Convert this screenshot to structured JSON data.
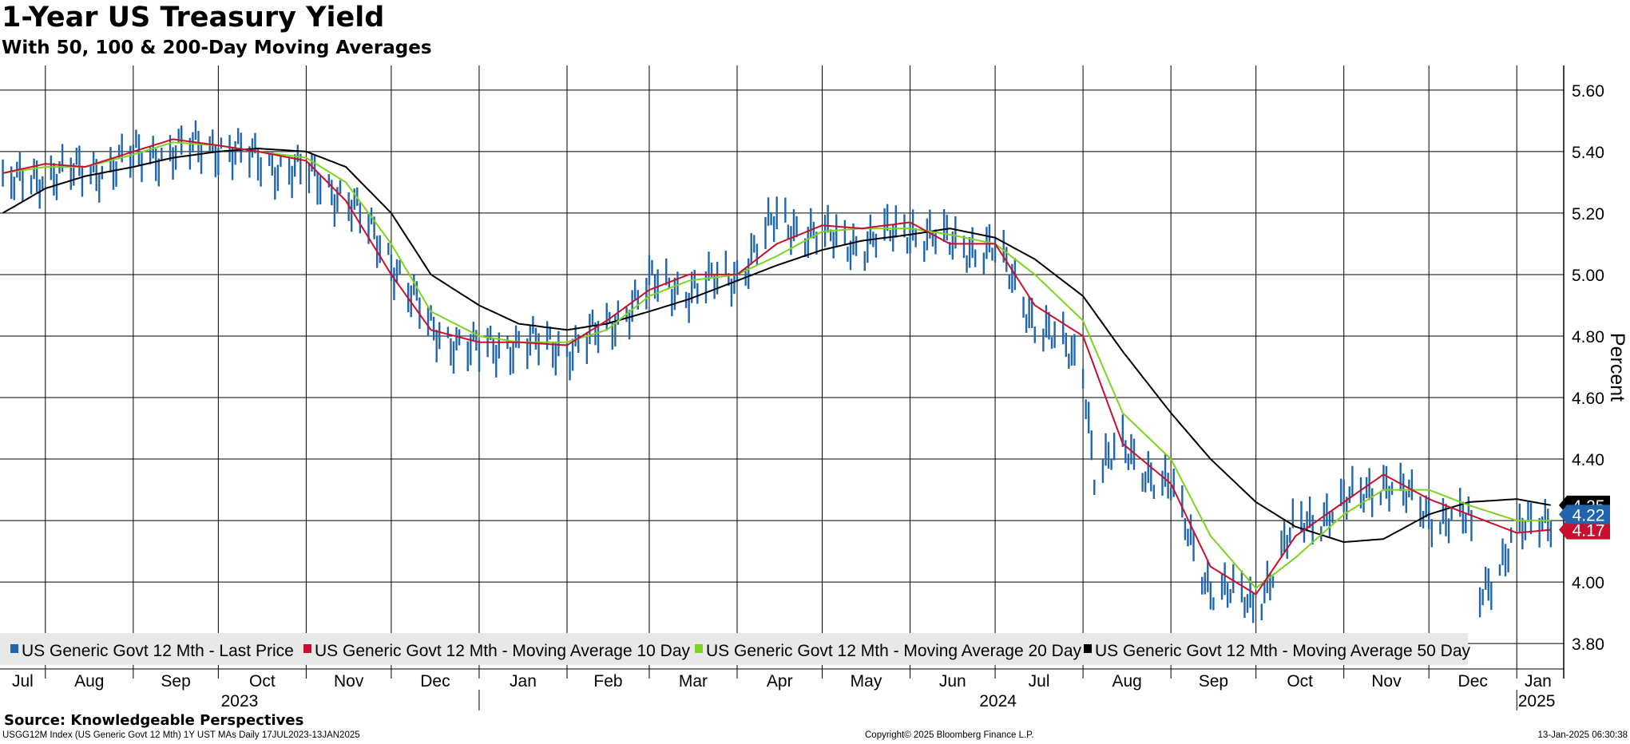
{
  "title": "1-Year US Treasury Yield",
  "subtitle": "With 50, 100 & 200-Day Moving Averages",
  "source": "Source: Knowledgeable Perspectives",
  "footer": {
    "left": "USGG12M Index (US Generic Govt 12 Mth) 1Y UST MAs  Daily 17JUL2023-13JAN2025",
    "center": "Copyright© 2025 Bloomberg Finance L.P.",
    "right": "13-Jan-2025 06:30:38"
  },
  "colors": {
    "price": "#2166ac",
    "ma10": "#c8102e",
    "ma20": "#7ed321",
    "ma50": "#000000",
    "grid": "#000000",
    "legend_bg": "#e8e8e8"
  },
  "chart_data": {
    "type": "line",
    "ylabel": "Percent",
    "ylim": [
      3.72,
      5.68
    ],
    "yticks": [
      "5.60",
      "5.40",
      "5.20",
      "5.00",
      "4.80",
      "4.60",
      "4.40",
      "4.20",
      "4.00",
      "3.80"
    ],
    "x_month_labels": [
      "Jul",
      "Aug",
      "Sep",
      "Oct",
      "Nov",
      "Dec",
      "Jan",
      "Feb",
      "Mar",
      "Apr",
      "May",
      "Jun",
      "Jul",
      "Aug",
      "Sep",
      "Oct",
      "Nov",
      "Dec",
      "Jan"
    ],
    "x_year_labels": [
      "2023",
      "2024",
      "2025"
    ],
    "x_range": [
      "2023-07-17",
      "2025-01-13"
    ],
    "legend": [
      "US Generic Govt 12 Mth - Last Price",
      "US Generic Govt 12 Mth - Moving Average 10 Day",
      "US Generic Govt 12 Mth - Moving Average 20 Day",
      "US Generic Govt 12 Mth - Moving Average 50 Day"
    ],
    "last_values": {
      "price": "4.22",
      "ma10": "4.17",
      "ma50": "4.25"
    },
    "series": [
      {
        "name": "US Generic Govt 12 Mth - Last Price",
        "dates": [
          "2023-07-17",
          "2023-08-01",
          "2023-08-15",
          "2023-09-01",
          "2023-09-15",
          "2023-10-01",
          "2023-10-15",
          "2023-11-01",
          "2023-11-15",
          "2023-12-01",
          "2023-12-15",
          "2024-01-01",
          "2024-01-15",
          "2024-02-01",
          "2024-02-15",
          "2024-03-01",
          "2024-03-15",
          "2024-04-01",
          "2024-04-15",
          "2024-05-01",
          "2024-05-15",
          "2024-06-01",
          "2024-06-15",
          "2024-07-01",
          "2024-07-15",
          "2024-08-01",
          "2024-08-05",
          "2024-08-15",
          "2024-09-01",
          "2024-09-15",
          "2024-10-01",
          "2024-10-15",
          "2024-11-01",
          "2024-11-15",
          "2024-12-01",
          "2024-12-15",
          "2024-12-19",
          "2025-01-01",
          "2025-01-13"
        ],
        "values": [
          5.28,
          5.33,
          5.33,
          5.38,
          5.4,
          5.42,
          5.37,
          5.33,
          5.25,
          5.05,
          4.82,
          4.75,
          4.78,
          4.76,
          4.82,
          4.97,
          4.95,
          5.0,
          5.18,
          5.12,
          5.1,
          5.15,
          5.1,
          5.08,
          4.85,
          4.7,
          4.36,
          4.43,
          4.3,
          3.98,
          3.93,
          4.18,
          4.25,
          4.33,
          4.22,
          4.2,
          3.96,
          4.15,
          4.22
        ]
      },
      {
        "name": "US Generic Govt 12 Mth - Moving Average 10 Day",
        "dates": [
          "2023-07-17",
          "2023-08-01",
          "2023-08-15",
          "2023-09-01",
          "2023-09-15",
          "2023-10-01",
          "2023-10-15",
          "2023-11-01",
          "2023-11-15",
          "2023-12-01",
          "2023-12-15",
          "2024-01-01",
          "2024-01-15",
          "2024-02-01",
          "2024-02-15",
          "2024-03-01",
          "2024-03-15",
          "2024-04-01",
          "2024-04-15",
          "2024-05-01",
          "2024-05-15",
          "2024-06-01",
          "2024-06-15",
          "2024-07-01",
          "2024-07-15",
          "2024-08-01",
          "2024-08-15",
          "2024-09-01",
          "2024-09-15",
          "2024-10-01",
          "2024-10-15",
          "2024-11-01",
          "2024-11-15",
          "2024-12-01",
          "2024-12-15",
          "2025-01-01",
          "2025-01-13"
        ],
        "values": [
          5.33,
          5.36,
          5.35,
          5.4,
          5.44,
          5.42,
          5.4,
          5.37,
          5.24,
          5.0,
          4.82,
          4.78,
          4.78,
          4.77,
          4.85,
          4.95,
          5.0,
          5.0,
          5.1,
          5.16,
          5.15,
          5.17,
          5.1,
          5.1,
          4.9,
          4.8,
          4.45,
          4.32,
          4.05,
          3.96,
          4.15,
          4.26,
          4.35,
          4.27,
          4.22,
          4.16,
          4.17
        ]
      },
      {
        "name": "US Generic Govt 12 Mth - Moving Average 20 Day",
        "dates": [
          "2023-07-17",
          "2023-08-01",
          "2023-08-15",
          "2023-09-01",
          "2023-09-15",
          "2023-10-01",
          "2023-10-15",
          "2023-11-01",
          "2023-11-15",
          "2023-12-01",
          "2023-12-15",
          "2024-01-01",
          "2024-01-15",
          "2024-02-01",
          "2024-02-15",
          "2024-03-01",
          "2024-03-15",
          "2024-04-01",
          "2024-04-15",
          "2024-05-01",
          "2024-05-15",
          "2024-06-01",
          "2024-06-15",
          "2024-07-01",
          "2024-07-15",
          "2024-08-01",
          "2024-08-15",
          "2024-09-01",
          "2024-09-15",
          "2024-10-01",
          "2024-10-15",
          "2024-11-01",
          "2024-11-15",
          "2024-12-01",
          "2024-12-15",
          "2025-01-01",
          "2025-01-13"
        ],
        "values": [
          5.33,
          5.35,
          5.35,
          5.39,
          5.43,
          5.42,
          5.4,
          5.38,
          5.3,
          5.1,
          4.88,
          4.8,
          4.78,
          4.78,
          4.82,
          4.93,
          4.98,
          5.0,
          5.06,
          5.14,
          5.15,
          5.15,
          5.13,
          5.1,
          5.0,
          4.85,
          4.55,
          4.4,
          4.15,
          3.98,
          4.08,
          4.22,
          4.3,
          4.3,
          4.25,
          4.2,
          4.2
        ]
      },
      {
        "name": "US Generic Govt 12 Mth - Moving Average 50 Day",
        "dates": [
          "2023-07-17",
          "2023-08-01",
          "2023-08-15",
          "2023-09-01",
          "2023-09-15",
          "2023-10-01",
          "2023-10-15",
          "2023-11-01",
          "2023-11-15",
          "2023-12-01",
          "2023-12-15",
          "2024-01-01",
          "2024-01-15",
          "2024-02-01",
          "2024-02-15",
          "2024-03-01",
          "2024-03-15",
          "2024-04-01",
          "2024-04-15",
          "2024-05-01",
          "2024-05-15",
          "2024-06-01",
          "2024-06-15",
          "2024-07-01",
          "2024-07-15",
          "2024-08-01",
          "2024-08-15",
          "2024-09-01",
          "2024-09-15",
          "2024-10-01",
          "2024-10-15",
          "2024-11-01",
          "2024-11-15",
          "2024-12-01",
          "2024-12-15",
          "2025-01-01",
          "2025-01-13"
        ],
        "values": [
          5.2,
          5.28,
          5.32,
          5.35,
          5.38,
          5.4,
          5.41,
          5.4,
          5.35,
          5.2,
          5.0,
          4.9,
          4.84,
          4.82,
          4.84,
          4.88,
          4.92,
          4.98,
          5.03,
          5.08,
          5.11,
          5.13,
          5.15,
          5.12,
          5.05,
          4.93,
          4.75,
          4.55,
          4.4,
          4.26,
          4.18,
          4.13,
          4.14,
          4.22,
          4.26,
          4.27,
          4.25
        ]
      }
    ]
  }
}
